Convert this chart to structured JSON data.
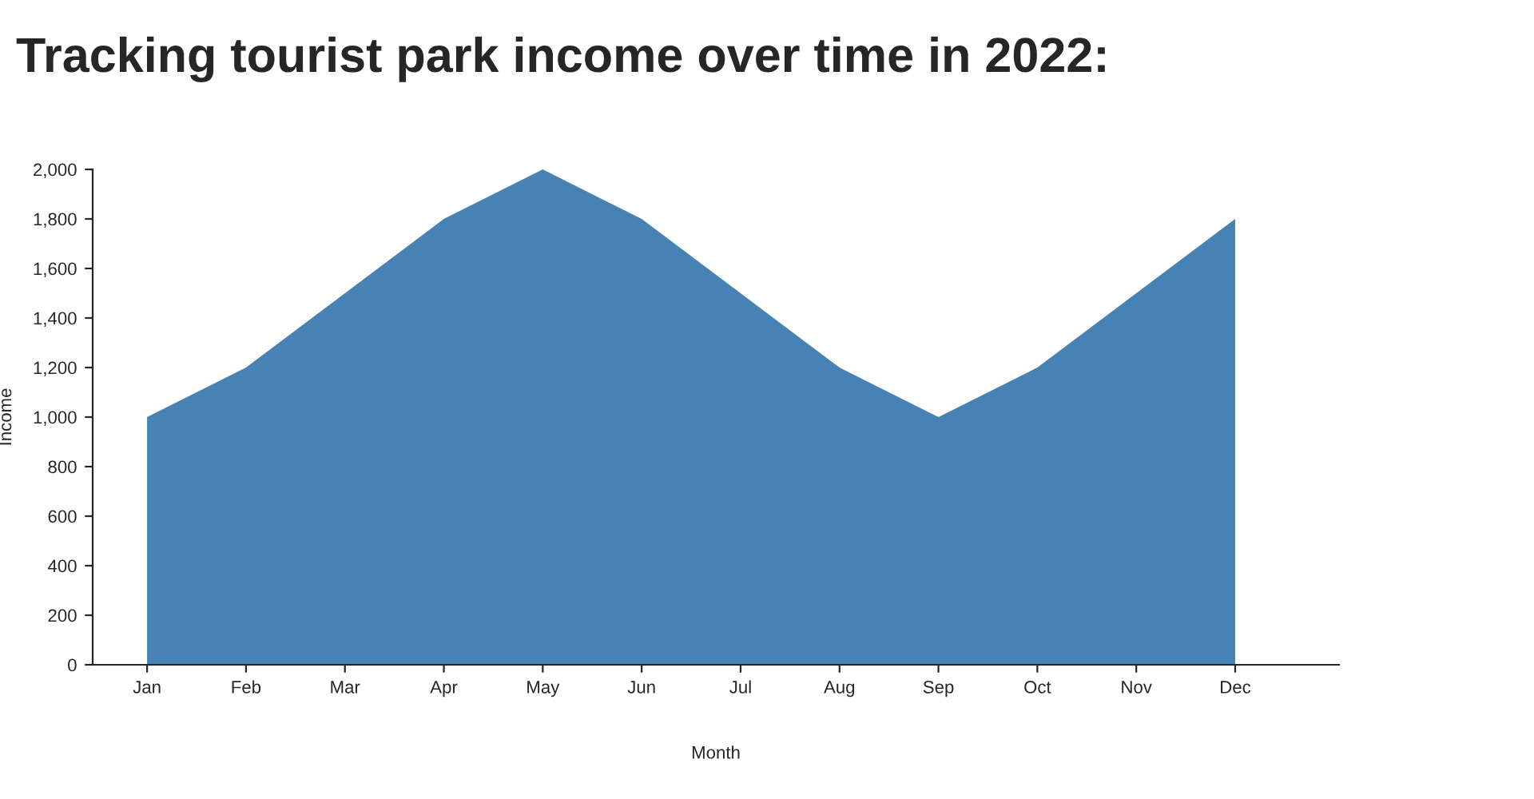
{
  "chart_data": {
    "type": "area",
    "title": "Tracking tourist park income over time in 2022:",
    "xlabel": "Month",
    "ylabel": "Income",
    "categories": [
      "Jan",
      "Feb",
      "Mar",
      "Apr",
      "May",
      "Jun",
      "Jul",
      "Aug",
      "Sep",
      "Oct",
      "Nov",
      "Dec"
    ],
    "series": [
      {
        "color": "#4682b4",
        "values": [
          1000,
          1200,
          1500,
          1800,
          2000,
          1800,
          1500,
          1200,
          1000,
          1200,
          1500,
          1800
        ]
      }
    ],
    "ylim": [
      0,
      2000
    ],
    "yticks": [
      0,
      200,
      400,
      600,
      800,
      {
        "value": 1000,
        "label": "1,000"
      },
      {
        "value": 1200,
        "label": "1,200"
      },
      {
        "value": 1400,
        "label": "1,400"
      },
      {
        "value": 1600,
        "label": "1,600"
      },
      {
        "value": 1800,
        "label": "1,800"
      },
      {
        "value": 2000,
        "label": "2,000"
      }
    ],
    "grid": false,
    "legend": false
  }
}
